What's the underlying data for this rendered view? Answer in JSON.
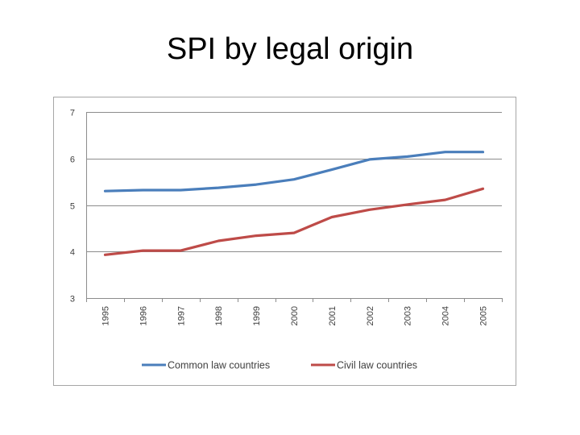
{
  "slide": {
    "title": "SPI by legal origin"
  },
  "chart_data": {
    "type": "line",
    "title": "",
    "xlabel": "",
    "ylabel": "",
    "categories": [
      "1995",
      "1996",
      "1997",
      "1998",
      "1999",
      "2000",
      "2001",
      "2002",
      "2003",
      "2004",
      "2005"
    ],
    "ylim": [
      3,
      7
    ],
    "yticks": [
      3,
      4,
      5,
      6,
      7
    ],
    "grid": true,
    "legend_position": "bottom",
    "series": [
      {
        "name": "Common law countries",
        "color": "#4a7ebb",
        "values": [
          5.3,
          5.32,
          5.32,
          5.37,
          5.44,
          5.55,
          5.76,
          5.98,
          6.04,
          6.14,
          6.14
        ]
      },
      {
        "name": "Civil law countries",
        "color": "#be4b48",
        "values": [
          3.93,
          4.02,
          4.02,
          4.23,
          4.34,
          4.4,
          4.74,
          4.9,
          5.01,
          5.11,
          5.35
        ]
      }
    ]
  }
}
